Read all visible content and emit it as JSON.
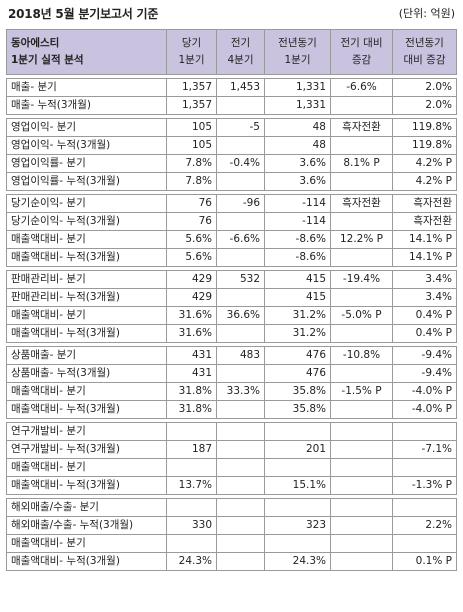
{
  "title": "2018년 5월 분기보고서 기준",
  "unit": "(단위: 억원)",
  "header": {
    "corner_line1": "동아에스티",
    "corner_line2": "1분기 실적 분석",
    "col1_line1": "당기",
    "col1_line2": "1분기",
    "col2_line1": "전기",
    "col2_line2": "4분기",
    "col3_line1": "전년동기",
    "col3_line2": "1분기",
    "col4_line1": "전기 대비",
    "col4_line2": "증감",
    "col5_line1": "전년동기",
    "col5_line2": "대비 증감"
  },
  "groups": [
    {
      "rows": [
        [
          "매출- 분기",
          "1,357",
          "1,453",
          "1,331",
          "-6.6%",
          "2.0%"
        ],
        [
          "매출- 누적(3개월)",
          "1,357",
          "",
          "1,331",
          "",
          "2.0%"
        ]
      ]
    },
    {
      "rows": [
        [
          "영업이익- 분기",
          "105",
          "-5",
          "48",
          "흑자전환",
          "119.8%"
        ],
        [
          "영업이익- 누적(3개월)",
          "105",
          "",
          "48",
          "",
          "119.8%"
        ],
        [
          "영업이익률- 분기",
          "7.8%",
          "-0.4%",
          "3.6%",
          "8.1% P",
          "4.2% P"
        ],
        [
          "영업이익률- 누적(3개월)",
          "7.8%",
          "",
          "3.6%",
          "",
          "4.2% P"
        ]
      ]
    },
    {
      "rows": [
        [
          "당기순이익- 분기",
          "76",
          "-96",
          "-114",
          "흑자전환",
          "흑자전환"
        ],
        [
          "당기순이익- 누적(3개월)",
          "76",
          "",
          "-114",
          "",
          "흑자전환"
        ],
        [
          "매출액대비- 분기",
          "5.6%",
          "-6.6%",
          "-8.6%",
          "12.2% P",
          "14.1% P"
        ],
        [
          "매출액대비- 누적(3개월)",
          "5.6%",
          "",
          "-8.6%",
          "",
          "14.1% P"
        ]
      ]
    },
    {
      "rows": [
        [
          "판매관리비- 분기",
          "429",
          "532",
          "415",
          "-19.4%",
          "3.4%"
        ],
        [
          "판매관리비- 누적(3개월)",
          "429",
          "",
          "415",
          "",
          "3.4%"
        ],
        [
          "매출액대비- 분기",
          "31.6%",
          "36.6%",
          "31.2%",
          "-5.0% P",
          "0.4% P"
        ],
        [
          "매출액대비- 누적(3개월)",
          "31.6%",
          "",
          "31.2%",
          "",
          "0.4% P"
        ]
      ]
    },
    {
      "rows": [
        [
          "상품매출- 분기",
          "431",
          "483",
          "476",
          "-10.8%",
          "-9.4%"
        ],
        [
          "상품매출- 누적(3개월)",
          "431",
          "",
          "476",
          "",
          "-9.4%"
        ],
        [
          "매출액대비- 분기",
          "31.8%",
          "33.3%",
          "35.8%",
          "-1.5% P",
          "-4.0% P"
        ],
        [
          "매출액대비- 누적(3개월)",
          "31.8%",
          "",
          "35.8%",
          "",
          "-4.0% P"
        ]
      ]
    },
    {
      "rows": [
        [
          "연구개발비- 분기",
          "",
          "",
          "",
          "",
          ""
        ],
        [
          "연구개발비- 누적(3개월)",
          "187",
          "",
          "201",
          "",
          "-7.1%"
        ],
        [
          "매출액대비- 분기",
          "",
          "",
          "",
          "",
          ""
        ],
        [
          "매출액대비- 누적(3개월)",
          "13.7%",
          "",
          "15.1%",
          "",
          "-1.3% P"
        ]
      ]
    },
    {
      "rows": [
        [
          "해외매출/수출- 분기",
          "",
          "",
          "",
          "",
          ""
        ],
        [
          "해외매출/수출- 누적(3개월)",
          "330",
          "",
          "323",
          "",
          "2.2%"
        ],
        [
          "매출액대비- 분기",
          "",
          "",
          "",
          "",
          ""
        ],
        [
          "매출액대비- 누적(3개월)",
          "24.3%",
          "",
          "24.3%",
          "",
          "0.1% P"
        ]
      ]
    }
  ]
}
